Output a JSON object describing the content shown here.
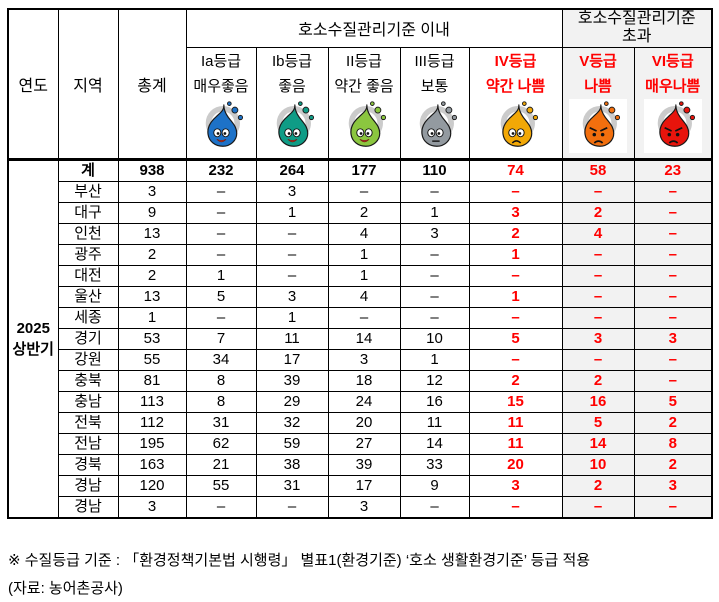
{
  "table": {
    "columns": {
      "year": "연도",
      "region": "지역",
      "total": "총계"
    },
    "groups": {
      "within": "호소수질관리기준 이내",
      "exceed": "호소수질관리기준\n초과"
    },
    "grades": [
      {
        "id": "Ia",
        "grade": "Ia등급",
        "desc": "매우좋음",
        "text_color": "#000000",
        "group": "within",
        "icon": "droplet-character-very-good",
        "color": "#1d72c8",
        "face": "happy"
      },
      {
        "id": "Ib",
        "grade": "Ib등급",
        "desc": "좋음",
        "text_color": "#000000",
        "group": "within",
        "icon": "droplet-character-good",
        "color": "#0f9c86",
        "face": "happy"
      },
      {
        "id": "II",
        "grade": "II등급",
        "desc": "약간 좋음",
        "text_color": "#000000",
        "group": "within",
        "icon": "droplet-character-fairly-good",
        "color": "#8bc63f",
        "face": "happy"
      },
      {
        "id": "III",
        "grade": "III등급",
        "desc": "보통",
        "text_color": "#000000",
        "group": "within",
        "icon": "droplet-character-normal",
        "color": "#939aa0",
        "face": "neutral"
      },
      {
        "id": "IV",
        "grade": "IV등급",
        "desc": "약간 나쁨",
        "text_color": "#ff0000",
        "group": "within",
        "icon": "droplet-character-fairly-bad",
        "color": "#f2a806",
        "face": "sad"
      },
      {
        "id": "V",
        "grade": "V등급",
        "desc": "나쁨",
        "text_color": "#ff0000",
        "group": "exceed",
        "icon": "droplet-character-bad",
        "color": "#f26f0e",
        "face": "angry"
      },
      {
        "id": "VI",
        "grade": "VI등급",
        "desc": "매우나쁨",
        "text_color": "#ff0000",
        "group": "exceed",
        "icon": "droplet-character-very-bad",
        "color": "#e8140c",
        "face": "angry"
      }
    ],
    "year_value": "2025\n상반기",
    "value_columns": [
      "total",
      "Ia",
      "Ib",
      "II",
      "III",
      "IV",
      "V",
      "VI"
    ],
    "rows": [
      {
        "region": "계",
        "bold": true,
        "values": [
          "938",
          "232",
          "264",
          "177",
          "110",
          "74",
          "58",
          "23"
        ]
      },
      {
        "region": "부산",
        "bold": false,
        "values": [
          "3",
          "–",
          "3",
          "–",
          "–",
          "–",
          "–",
          "–"
        ]
      },
      {
        "region": "대구",
        "bold": false,
        "values": [
          "9",
          "–",
          "1",
          "2",
          "1",
          "3",
          "2",
          "–"
        ]
      },
      {
        "region": "인천",
        "bold": false,
        "values": [
          "13",
          "–",
          "–",
          "4",
          "3",
          "2",
          "4",
          "–"
        ]
      },
      {
        "region": "광주",
        "bold": false,
        "values": [
          "2",
          "–",
          "–",
          "1",
          "–",
          "1",
          "–",
          "–"
        ]
      },
      {
        "region": "대전",
        "bold": false,
        "values": [
          "2",
          "1",
          "–",
          "1",
          "–",
          "–",
          "–",
          "–"
        ]
      },
      {
        "region": "울산",
        "bold": false,
        "values": [
          "13",
          "5",
          "3",
          "4",
          "–",
          "1",
          "–",
          "–"
        ]
      },
      {
        "region": "세종",
        "bold": false,
        "values": [
          "1",
          "–",
          "1",
          "–",
          "–",
          "–",
          "–",
          "–"
        ]
      },
      {
        "region": "경기",
        "bold": false,
        "values": [
          "53",
          "7",
          "11",
          "14",
          "10",
          "5",
          "3",
          "3"
        ]
      },
      {
        "region": "강원",
        "bold": false,
        "values": [
          "55",
          "34",
          "17",
          "3",
          "1",
          "–",
          "–",
          "–"
        ]
      },
      {
        "region": "충북",
        "bold": false,
        "values": [
          "81",
          "8",
          "39",
          "18",
          "12",
          "2",
          "2",
          "–"
        ]
      },
      {
        "region": "충남",
        "bold": false,
        "values": [
          "113",
          "8",
          "29",
          "24",
          "16",
          "15",
          "16",
          "5"
        ]
      },
      {
        "region": "전북",
        "bold": false,
        "values": [
          "112",
          "31",
          "32",
          "20",
          "11",
          "11",
          "5",
          "2"
        ]
      },
      {
        "region": "전남",
        "bold": false,
        "values": [
          "195",
          "62",
          "59",
          "27",
          "14",
          "11",
          "14",
          "8"
        ]
      },
      {
        "region": "경북",
        "bold": false,
        "values": [
          "163",
          "21",
          "38",
          "39",
          "33",
          "20",
          "10",
          "2"
        ]
      },
      {
        "region": "경남",
        "bold": false,
        "values": [
          "120",
          "55",
          "31",
          "17",
          "9",
          "3",
          "2",
          "3"
        ]
      },
      {
        "region": "경남",
        "bold": false,
        "values": [
          "3",
          "–",
          "–",
          "3",
          "–",
          "–",
          "–",
          "–"
        ]
      }
    ]
  },
  "footnotes": [
    "※ 수질등급 기준 : 「환경정책기본법 시행령」 별표1(환경기준) ‘호소 생활환경기준’ 등급 적용",
    "(자료: 농어촌공사)"
  ],
  "colors": {
    "red_text": "#ff0000",
    "exceed_bg": "#f2f2f2",
    "border": "#000000",
    "ring": "#cbcbcb"
  }
}
